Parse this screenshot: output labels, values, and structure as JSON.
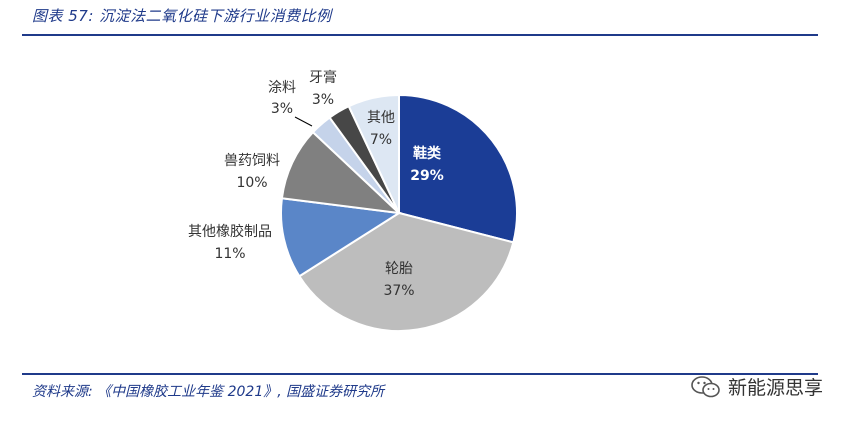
{
  "figure": {
    "title": "图表 57: 沉淀法二氧化硅下游行业消费比例",
    "source": "资料来源: 《中国橡胶工业年鉴 2021》, 国盛证券研究所",
    "watermark": "新能源思享"
  },
  "chart_data": {
    "type": "pie",
    "title": "",
    "slices": [
      {
        "label": "鞋类",
        "value": 29,
        "value_label": "29%",
        "color": "#1b3d96"
      },
      {
        "label": "轮胎",
        "value": 37,
        "value_label": "37%",
        "color": "#bdbdbd"
      },
      {
        "label": "其他橡胶制品",
        "value": 11,
        "value_label": "11%",
        "color": "#5a86c8"
      },
      {
        "label": "兽药饲料",
        "value": 10,
        "value_label": "10%",
        "color": "#808080"
      },
      {
        "label": "涂料",
        "value": 3,
        "value_label": "3%",
        "color": "#c5d3ea"
      },
      {
        "label": "牙膏",
        "value": 3,
        "value_label": "3%",
        "color": "#474747"
      },
      {
        "label": "其他",
        "value": 7,
        "value_label": "7%",
        "color": "#dde7f3"
      }
    ],
    "legend": "none"
  }
}
